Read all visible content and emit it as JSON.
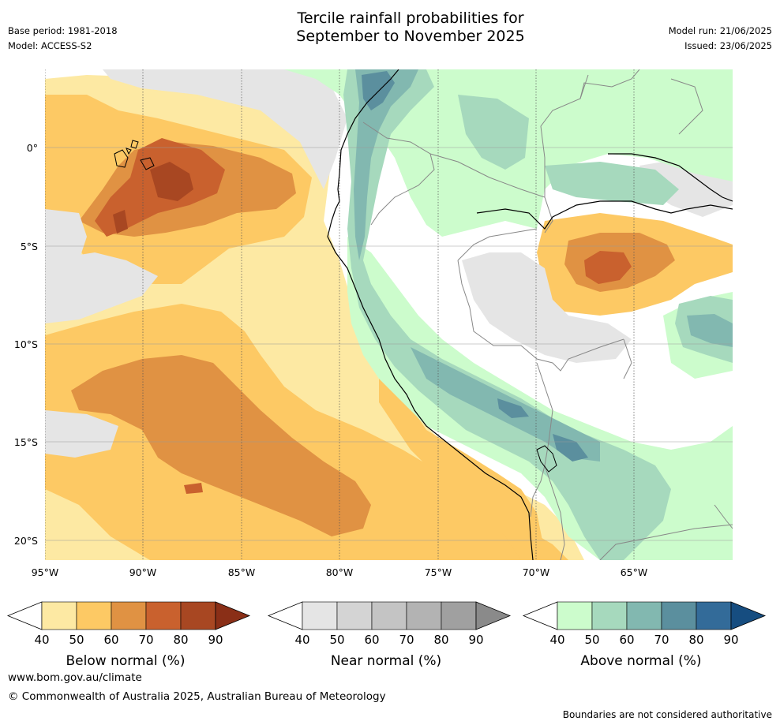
{
  "header": {
    "title_line1": "Tercile rainfall probabilities for",
    "title_line2": "September to November 2025",
    "base_period": "Base period: 1981-2018",
    "model": "Model: ACCESS-S2",
    "model_run": "Model run: 21/06/2025",
    "issued": "Issued: 23/06/2025"
  },
  "map": {
    "lon_labels": [
      "95°W",
      "90°W",
      "85°W",
      "80°W",
      "75°W",
      "70°W",
      "65°W"
    ],
    "lat_labels": [
      "0°",
      "5°S",
      "10°S",
      "15°S",
      "20°S"
    ],
    "ocean_color": "#ffffff",
    "coast_color": "#000000",
    "border_color": "#888888"
  },
  "colorbars": [
    {
      "title": "Below normal (%)",
      "ticks": [
        "40",
        "50",
        "60",
        "70",
        "80",
        "90"
      ],
      "colors": [
        "#fde9a3",
        "#fdc964",
        "#e09243",
        "#c9612e",
        "#a84722",
        "#8a2f17"
      ]
    },
    {
      "title": "Near normal (%)",
      "ticks": [
        "40",
        "50",
        "60",
        "70",
        "80",
        "90"
      ],
      "colors": [
        "#e5e5e5",
        "#d4d4d4",
        "#c4c4c4",
        "#b3b3b3",
        "#a0a0a0",
        "#8a8a8a"
      ]
    },
    {
      "title": "Above normal (%)",
      "ticks": [
        "40",
        "50",
        "60",
        "70",
        "80",
        "90"
      ],
      "colors": [
        "#ccfccc",
        "#a6d9bd",
        "#82b8b0",
        "#5b8f9e",
        "#336b99",
        "#164d80"
      ]
    }
  ],
  "footer": {
    "url": "www.bom.gov.au/climate",
    "copyright": "© Commonwealth of Australia 2025, Australian Bureau of Meteorology",
    "disclaimer": "Boundaries are not considered authoritative"
  }
}
